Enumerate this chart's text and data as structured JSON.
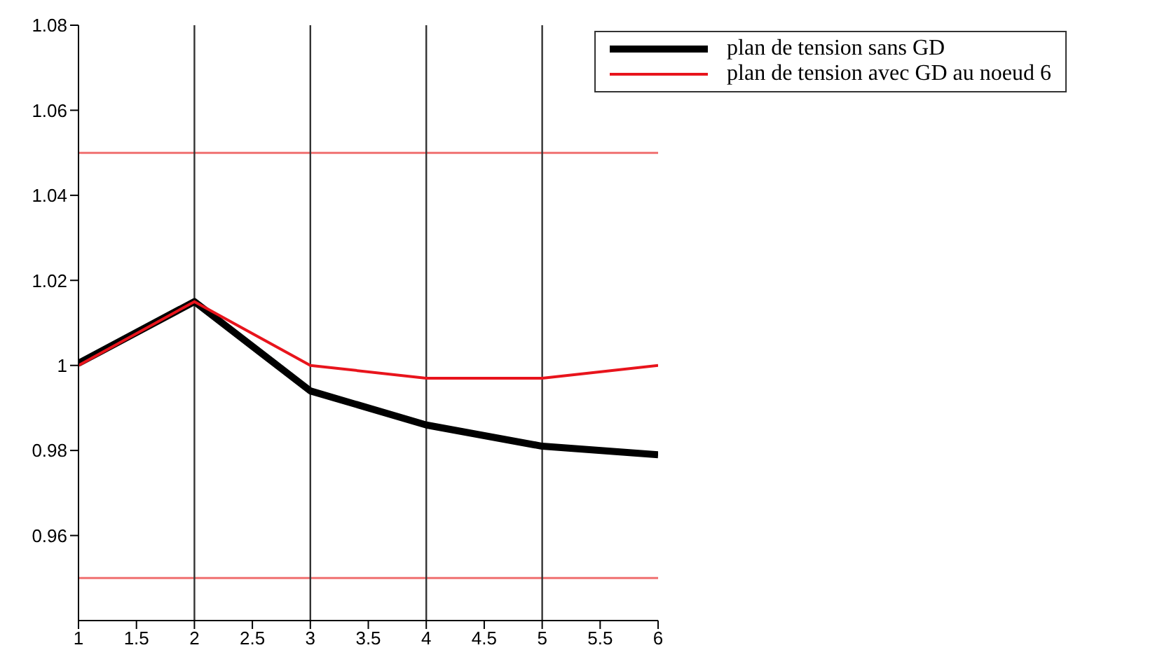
{
  "chart_data": {
    "type": "line",
    "x": [
      1,
      2,
      3,
      4,
      5,
      6
    ],
    "series": [
      {
        "name": "plan de tension sans GD",
        "color": "#000000",
        "values": [
          1.0005,
          1.015,
          0.994,
          0.986,
          0.981,
          0.979
        ]
      },
      {
        "name": "plan de tension avec GD au noeud 6",
        "color": "#e8141c",
        "values": [
          1.0,
          1.015,
          1.0,
          0.997,
          0.997,
          1.0
        ]
      }
    ],
    "xlim": [
      1,
      6
    ],
    "xticks": [
      1,
      1.5,
      2,
      2.5,
      3,
      3.5,
      4,
      4.5,
      5,
      5.5,
      6
    ],
    "ylim": [
      0.94,
      1.08
    ],
    "yticks": [
      0.96,
      0.98,
      1,
      1.02,
      1.04,
      1.06,
      1.08
    ],
    "ref_lines": [
      {
        "axis": "y",
        "value": 1.05,
        "color": "#f07070"
      },
      {
        "axis": "y",
        "value": 0.95,
        "color": "#f07070"
      },
      {
        "axis": "x",
        "value": 2,
        "color": "#333333"
      },
      {
        "axis": "x",
        "value": 3,
        "color": "#333333"
      },
      {
        "axis": "x",
        "value": 4,
        "color": "#333333"
      },
      {
        "axis": "x",
        "value": 5,
        "color": "#333333"
      }
    ],
    "legend": "top right",
    "marker": "none",
    "line_style": "solid"
  }
}
